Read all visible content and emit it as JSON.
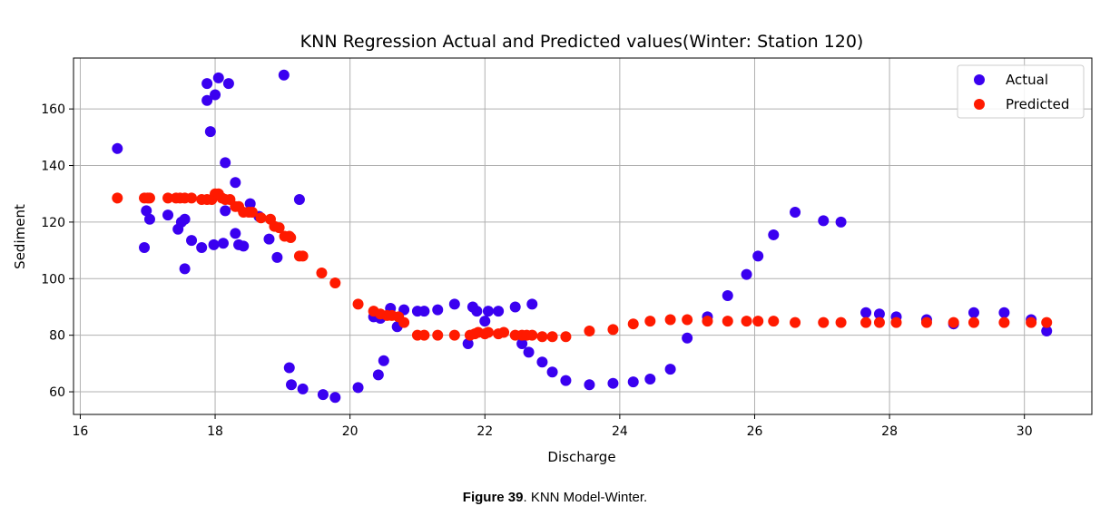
{
  "chart_data": {
    "type": "scatter",
    "title": "KNN Regression Actual and Predicted values(Winter: Station 120)",
    "xlabel": "Discharge",
    "ylabel": "Sediment",
    "xlim": [
      15.9,
      31.0
    ],
    "ylim": [
      52,
      178
    ],
    "xticks": [
      16,
      18,
      20,
      22,
      24,
      26,
      28,
      30
    ],
    "yticks": [
      60,
      80,
      100,
      120,
      140,
      160
    ],
    "grid": true,
    "legend_position": "top-right",
    "series": [
      {
        "name": "Actual",
        "color": "#3a00f0",
        "points": [
          [
            16.55,
            146
          ],
          [
            16.95,
            111
          ],
          [
            16.98,
            124
          ],
          [
            17.03,
            121
          ],
          [
            17.3,
            122.5
          ],
          [
            17.45,
            117.5
          ],
          [
            17.5,
            120
          ],
          [
            17.55,
            121
          ],
          [
            17.55,
            103.5
          ],
          [
            17.65,
            113.5
          ],
          [
            17.8,
            111
          ],
          [
            17.88,
            169
          ],
          [
            17.88,
            163
          ],
          [
            17.93,
            152
          ],
          [
            17.98,
            112
          ],
          [
            18.0,
            165
          ],
          [
            18.05,
            171
          ],
          [
            18.12,
            112.5
          ],
          [
            18.15,
            141
          ],
          [
            18.15,
            124
          ],
          [
            18.2,
            169
          ],
          [
            18.3,
            134
          ],
          [
            18.3,
            116
          ],
          [
            18.35,
            112
          ],
          [
            18.42,
            111.5
          ],
          [
            18.52,
            126.5
          ],
          [
            18.65,
            122
          ],
          [
            18.8,
            114
          ],
          [
            18.92,
            107.5
          ],
          [
            19.02,
            172
          ],
          [
            19.1,
            68.5
          ],
          [
            19.13,
            62.5
          ],
          [
            19.25,
            128
          ],
          [
            19.3,
            61
          ],
          [
            19.6,
            59
          ],
          [
            19.78,
            58
          ],
          [
            20.12,
            61.5
          ],
          [
            20.35,
            86.5
          ],
          [
            20.42,
            66
          ],
          [
            20.45,
            86
          ],
          [
            20.5,
            71
          ],
          [
            20.6,
            89.5
          ],
          [
            20.7,
            83
          ],
          [
            20.8,
            89
          ],
          [
            21.0,
            88.5
          ],
          [
            21.1,
            88.5
          ],
          [
            21.3,
            89
          ],
          [
            21.55,
            91
          ],
          [
            21.75,
            77
          ],
          [
            21.82,
            90
          ],
          [
            21.88,
            88.5
          ],
          [
            22.0,
            85
          ],
          [
            22.05,
            88.5
          ],
          [
            22.2,
            88.5
          ],
          [
            22.45,
            90
          ],
          [
            22.55,
            77
          ],
          [
            22.65,
            74
          ],
          [
            22.7,
            91
          ],
          [
            22.85,
            70.5
          ],
          [
            23.0,
            67
          ],
          [
            23.2,
            64
          ],
          [
            23.55,
            62.5
          ],
          [
            23.9,
            63
          ],
          [
            24.2,
            63.5
          ],
          [
            24.45,
            64.5
          ],
          [
            24.75,
            68
          ],
          [
            25.0,
            79
          ],
          [
            25.3,
            86.5
          ],
          [
            25.6,
            94
          ],
          [
            25.88,
            101.5
          ],
          [
            26.05,
            108
          ],
          [
            26.28,
            115.5
          ],
          [
            26.6,
            123.5
          ],
          [
            27.02,
            120.5
          ],
          [
            27.28,
            120
          ],
          [
            27.65,
            88
          ],
          [
            27.85,
            87.5
          ],
          [
            28.1,
            86.5
          ],
          [
            28.55,
            85.5
          ],
          [
            28.95,
            84
          ],
          [
            29.25,
            88
          ],
          [
            29.7,
            88
          ],
          [
            30.1,
            85.5
          ],
          [
            30.33,
            81.5
          ]
        ]
      },
      {
        "name": "Predicted",
        "color": "#ff1a00",
        "points": [
          [
            16.55,
            128.5
          ],
          [
            16.95,
            128.5
          ],
          [
            17.0,
            128.5
          ],
          [
            17.03,
            128.5
          ],
          [
            17.3,
            128.5
          ],
          [
            17.42,
            128.5
          ],
          [
            17.48,
            128.5
          ],
          [
            17.55,
            128.5
          ],
          [
            17.65,
            128.5
          ],
          [
            17.8,
            128
          ],
          [
            17.88,
            128
          ],
          [
            17.95,
            128
          ],
          [
            18.0,
            130
          ],
          [
            18.05,
            130
          ],
          [
            18.1,
            128.5
          ],
          [
            18.15,
            128
          ],
          [
            18.22,
            128
          ],
          [
            18.3,
            125.5
          ],
          [
            18.35,
            125.5
          ],
          [
            18.42,
            123.5
          ],
          [
            18.5,
            123.5
          ],
          [
            18.55,
            123.5
          ],
          [
            18.68,
            121.5
          ],
          [
            18.82,
            121
          ],
          [
            18.88,
            118.5
          ],
          [
            18.95,
            118
          ],
          [
            19.03,
            115
          ],
          [
            19.1,
            115
          ],
          [
            19.12,
            114.5
          ],
          [
            19.25,
            108
          ],
          [
            19.3,
            108
          ],
          [
            19.58,
            102
          ],
          [
            19.78,
            98.5
          ],
          [
            20.12,
            91
          ],
          [
            20.35,
            88.5
          ],
          [
            20.45,
            87.5
          ],
          [
            20.55,
            87
          ],
          [
            20.62,
            87
          ],
          [
            20.72,
            86.5
          ],
          [
            20.8,
            84.5
          ],
          [
            21.0,
            80
          ],
          [
            21.1,
            80
          ],
          [
            21.3,
            80
          ],
          [
            21.55,
            80
          ],
          [
            21.78,
            80
          ],
          [
            21.85,
            80.5
          ],
          [
            21.9,
            81
          ],
          [
            22.0,
            80.5
          ],
          [
            22.05,
            81
          ],
          [
            22.2,
            80.5
          ],
          [
            22.28,
            81
          ],
          [
            22.45,
            80
          ],
          [
            22.55,
            80
          ],
          [
            22.62,
            80
          ],
          [
            22.7,
            80
          ],
          [
            22.85,
            79.5
          ],
          [
            23.0,
            79.5
          ],
          [
            23.2,
            79.5
          ],
          [
            23.55,
            81.5
          ],
          [
            23.9,
            82
          ],
          [
            24.2,
            84
          ],
          [
            24.45,
            85
          ],
          [
            24.75,
            85.5
          ],
          [
            25.0,
            85.5
          ],
          [
            25.3,
            85
          ],
          [
            25.6,
            85
          ],
          [
            25.88,
            85
          ],
          [
            26.05,
            85
          ],
          [
            26.28,
            85
          ],
          [
            26.6,
            84.5
          ],
          [
            27.02,
            84.5
          ],
          [
            27.28,
            84.5
          ],
          [
            27.65,
            84.5
          ],
          [
            27.85,
            84.5
          ],
          [
            28.1,
            84.5
          ],
          [
            28.55,
            84.5
          ],
          [
            28.95,
            84.5
          ],
          [
            29.25,
            84.5
          ],
          [
            29.7,
            84.5
          ],
          [
            30.1,
            84.5
          ],
          [
            30.33,
            84.5
          ]
        ]
      }
    ]
  },
  "caption": {
    "label": "Figure 39",
    "text": ". KNN Model-Winter."
  }
}
